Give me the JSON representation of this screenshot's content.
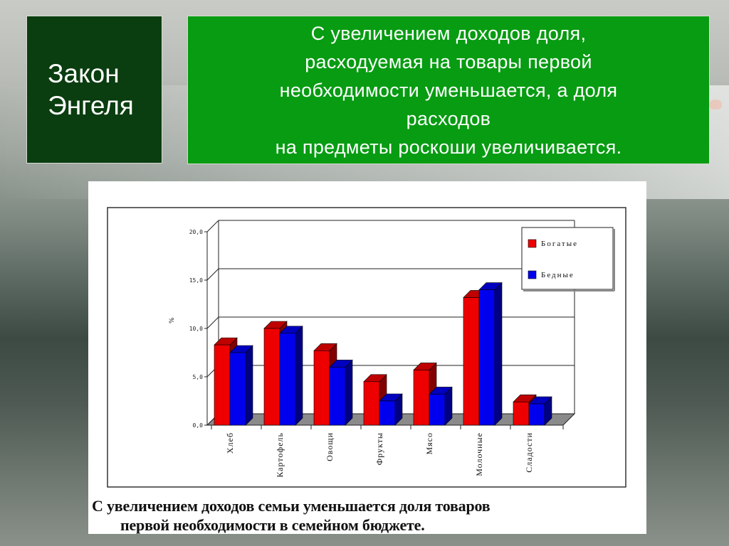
{
  "slide": {
    "title": "Закон\nЭнгеля",
    "statement": "С увеличением доходов доля,\nрасходуемая на товары первой\nнеобходимости уменьшается, а доля\nрасходов\nна предметы роскоши увеличивается.",
    "caption_line1": "С увеличением доходов семьи уменьшается доля товаров",
    "caption_line2": "первой необходимости в семейном бюджете.",
    "colors": {
      "title_bg": "#0a3d0f",
      "info_bg": "#079c12"
    }
  },
  "chart_data": {
    "type": "bar",
    "ylabel": "%",
    "ylim": [
      0,
      20
    ],
    "yticks": [
      0,
      5,
      10,
      15,
      20
    ],
    "ytick_labels": [
      "0,0",
      "5,0",
      "10,0",
      "15,0",
      "20,0"
    ],
    "categories": [
      "Хлеб",
      "Картофель",
      "Овощи",
      "Фрукты",
      "Мясо",
      "Молочные",
      "Сладости"
    ],
    "series": [
      {
        "name": "Богатые",
        "color": "#ee0000",
        "values": [
          8.3,
          10.0,
          7.7,
          4.5,
          5.7,
          13.2,
          2.4
        ]
      },
      {
        "name": "Бедные",
        "color": "#0000ee",
        "values": [
          7.5,
          9.5,
          6.0,
          2.5,
          3.2,
          14.0,
          2.2
        ]
      }
    ],
    "legend": {
      "placement": "top-right"
    },
    "grid": true
  }
}
